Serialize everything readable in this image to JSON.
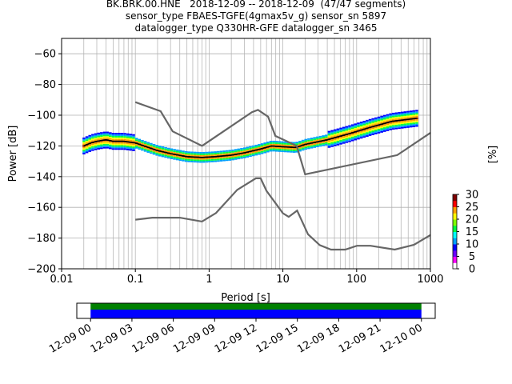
{
  "chart_data": {
    "type": "heatmap",
    "title_lines": [
      "BK.BRK.00.HNE   2018-12-09 -- 2018-12-09  (47/47 segments)",
      "sensor_type FBAES-TGFE(4gmax5v_g) sensor_sn 5897",
      "datalogger_type Q330HR-GFE datalogger_sn 3465"
    ],
    "xlabel": "Period [s]",
    "ylabel": "Power [dB]",
    "xscale": "log",
    "xlim": [
      0.01,
      1000
    ],
    "ylim": [
      -200,
      -50
    ],
    "x_ticks": [
      {
        "value": 0.01,
        "label": "0.01"
      },
      {
        "value": 0.1,
        "label": "0.1"
      },
      {
        "value": 1,
        "label": "1"
      },
      {
        "value": 10,
        "label": "10"
      },
      {
        "value": 100,
        "label": "100"
      },
      {
        "value": 1000,
        "label": "1000"
      }
    ],
    "y_ticks": [
      {
        "value": -60,
        "label": "−60"
      },
      {
        "value": -80,
        "label": "−80"
      },
      {
        "value": -100,
        "label": "−100"
      },
      {
        "value": -120,
        "label": "−120"
      },
      {
        "value": -140,
        "label": "−140"
      },
      {
        "value": -160,
        "label": "−160"
      },
      {
        "value": -180,
        "label": "−180"
      },
      {
        "value": -200,
        "label": "−200"
      }
    ],
    "grid": true,
    "noise_model_high": [
      [
        0.1,
        -91.5
      ],
      [
        0.22,
        -97.4
      ],
      [
        0.32,
        -110.5
      ],
      [
        0.8,
        -120
      ],
      [
        3.8,
        -98
      ],
      [
        4.6,
        -96.5
      ],
      [
        6.3,
        -101
      ],
      [
        7.9,
        -113.5
      ],
      [
        15.4,
        -120
      ],
      [
        20,
        -138.5
      ],
      [
        354.8,
        -126
      ],
      [
        1000,
        -111.5
      ]
    ],
    "noise_model_low": [
      [
        0.1,
        -168
      ],
      [
        0.17,
        -166.7
      ],
      [
        0.4,
        -166.7
      ],
      [
        0.8,
        -169.2
      ],
      [
        1.24,
        -163.7
      ],
      [
        2.4,
        -148.6
      ],
      [
        4.3,
        -141.1
      ],
      [
        5.0,
        -141.1
      ],
      [
        6.0,
        -149.2
      ],
      [
        10.0,
        -163.8
      ],
      [
        12.0,
        -166.2
      ],
      [
        15.6,
        -162.1
      ],
      [
        21.9,
        -177.5
      ],
      [
        31.6,
        -184.6
      ],
      [
        45.0,
        -187.5
      ],
      [
        70.0,
        -187.5
      ],
      [
        101.0,
        -185.0
      ],
      [
        154.0,
        -185.0
      ],
      [
        328.0,
        -187.5
      ],
      [
        600.0,
        -184.4
      ],
      [
        1000,
        -178.0
      ]
    ],
    "mode_curve": [
      [
        0.02,
        -120
      ],
      [
        0.025,
        -118
      ],
      [
        0.03,
        -117
      ],
      [
        0.04,
        -116
      ],
      [
        0.05,
        -117
      ],
      [
        0.07,
        -117
      ],
      [
        0.1,
        -118
      ],
      [
        0.15,
        -121
      ],
      [
        0.2,
        -123
      ],
      [
        0.3,
        -125
      ],
      [
        0.5,
        -127
      ],
      [
        0.8,
        -127.5
      ],
      [
        1.2,
        -127
      ],
      [
        2,
        -126
      ],
      [
        3,
        -124.5
      ],
      [
        5,
        -122
      ],
      [
        7,
        -120
      ],
      [
        10,
        -120.5
      ],
      [
        15,
        -121
      ],
      [
        20,
        -119
      ],
      [
        40,
        -116
      ],
      [
        80,
        -112
      ],
      [
        150,
        -108
      ],
      [
        300,
        -104
      ],
      [
        650,
        -102
      ]
    ],
    "colorbar": {
      "label": "[%]",
      "min": 0,
      "max": 30,
      "ticks": [
        {
          "value": 0,
          "label": "0"
        },
        {
          "value": 5,
          "label": "5"
        },
        {
          "value": 10,
          "label": "10"
        },
        {
          "value": 15,
          "label": "15"
        },
        {
          "value": 20,
          "label": "20"
        },
        {
          "value": 25,
          "label": "25"
        },
        {
          "value": 30,
          "label": "30"
        }
      ],
      "colors": [
        "#ffffff",
        "#ff00ff",
        "#6a00ff",
        "#0000ff",
        "#00a0ff",
        "#00ffff",
        "#00ff40",
        "#80ff00",
        "#ffff00",
        "#ffa000",
        "#ff0000",
        "#800000"
      ]
    },
    "timeline": {
      "start_label": "12-09 00",
      "ticks": [
        "12-09 00",
        "12-09 03",
        "12-09 06",
        "12-09 09",
        "12-09 12",
        "12-09 15",
        "12-09 18",
        "12-09 21",
        "12-10 00"
      ],
      "range_hours": [
        -1,
        25
      ],
      "data_hours": [
        0,
        24
      ],
      "band_colors": [
        "#008000",
        "#0000ff"
      ]
    }
  }
}
